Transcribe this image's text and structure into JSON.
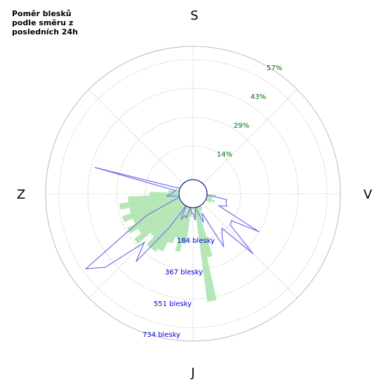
{
  "chart_data": {
    "type": "polar",
    "title": "Poměr blesků\npodle směru z\nposledních 24h",
    "direction_labels": {
      "top": "S",
      "right": "V",
      "bottom": "J",
      "left": "Z"
    },
    "percent_ticks": [
      "14%",
      "29%",
      "43%",
      "57%"
    ],
    "count_ticks": [
      "184 blesky",
      "367 blesky",
      "551 blesky",
      "734 blesky"
    ],
    "rmax": 73,
    "sector_deg": 5,
    "colors": {
      "percent_bars": "#b5e6b5",
      "count_line": "#7a7ae8",
      "grid": "#aaaaaa",
      "center": "#000080"
    },
    "series": [
      {
        "name": "percent",
        "kind": "bar",
        "points": [
          {
            "angle": 95,
            "value": 5
          },
          {
            "angle": 100,
            "value": 3
          },
          {
            "angle": 105,
            "value": 3
          },
          {
            "angle": 110,
            "value": 5
          },
          {
            "angle": 115,
            "value": 3
          },
          {
            "angle": 150,
            "value": 2
          },
          {
            "angle": 155,
            "value": 3
          },
          {
            "angle": 160,
            "value": 5
          },
          {
            "angle": 165,
            "value": 28
          },
          {
            "angle": 170,
            "value": 52
          },
          {
            "angle": 175,
            "value": 5
          },
          {
            "angle": 185,
            "value": 5
          },
          {
            "angle": 190,
            "value": 20
          },
          {
            "angle": 195,
            "value": 25
          },
          {
            "angle": 200,
            "value": 18
          },
          {
            "angle": 205,
            "value": 22
          },
          {
            "angle": 210,
            "value": 28
          },
          {
            "angle": 215,
            "value": 30
          },
          {
            "angle": 220,
            "value": 30
          },
          {
            "angle": 225,
            "value": 24
          },
          {
            "angle": 230,
            "value": 33
          },
          {
            "angle": 235,
            "value": 28
          },
          {
            "angle": 240,
            "value": 33
          },
          {
            "angle": 245,
            "value": 28
          },
          {
            "angle": 250,
            "value": 33
          },
          {
            "angle": 255,
            "value": 28
          },
          {
            "angle": 260,
            "value": 33
          },
          {
            "angle": 265,
            "value": 28
          },
          {
            "angle": 270,
            "value": 16
          },
          {
            "angle": 275,
            "value": 6
          },
          {
            "angle": 280,
            "value": 3
          },
          {
            "angle": 285,
            "value": 2
          }
        ]
      },
      {
        "name": "count",
        "kind": "line",
        "points": [
          {
            "angle": 100,
            "value": 11
          },
          {
            "angle": 105,
            "value": 11
          },
          {
            "angle": 110,
            "value": 12
          },
          {
            "angle": 115,
            "value": 8
          },
          {
            "angle": 120,
            "value": 34
          },
          {
            "angle": 125,
            "value": 18
          },
          {
            "angle": 130,
            "value": 19
          },
          {
            "angle": 135,
            "value": 39
          },
          {
            "angle": 140,
            "value": 17
          },
          {
            "angle": 145,
            "value": 20
          },
          {
            "angle": 150,
            "value": 26
          },
          {
            "angle": 155,
            "value": 4
          },
          {
            "angle": 160,
            "value": 9
          },
          {
            "angle": 165,
            "value": 3
          },
          {
            "angle": 175,
            "value": 7
          },
          {
            "angle": 180,
            "value": 3
          },
          {
            "angle": 185,
            "value": 3
          },
          {
            "angle": 195,
            "value": 6
          },
          {
            "angle": 200,
            "value": 5
          },
          {
            "angle": 205,
            "value": 8
          },
          {
            "angle": 215,
            "value": 15
          },
          {
            "angle": 220,
            "value": 41
          },
          {
            "angle": 225,
            "value": 30
          },
          {
            "angle": 230,
            "value": 55
          },
          {
            "angle": 235,
            "value": 64
          },
          {
            "angle": 240,
            "value": 33
          },
          {
            "angle": 245,
            "value": 20
          },
          {
            "angle": 250,
            "value": 5
          },
          {
            "angle": 265,
            "value": 7
          },
          {
            "angle": 270,
            "value": 4
          },
          {
            "angle": 275,
            "value": 3
          },
          {
            "angle": 280,
            "value": 2
          },
          {
            "angle": 285,
            "value": 48
          },
          {
            "angle": 290,
            "value": 2
          }
        ]
      }
    ]
  }
}
